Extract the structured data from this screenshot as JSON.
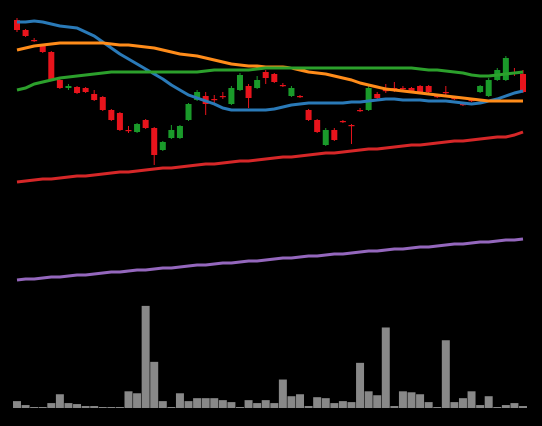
{
  "chart_data": {
    "type": "candlestick",
    "open": [
      270,
      260,
      250,
      244,
      238,
      210,
      202,
      203,
      202,
      196,
      193,
      180,
      177,
      160,
      158,
      170,
      162,
      140,
      152,
      152,
      170,
      190,
      194,
      191,
      194,
      186,
      200,
      204,
      202,
      218,
      216,
      205,
      194,
      194,
      180,
      170,
      145,
      160,
      169,
      165,
      180,
      180,
      196,
      200,
      202,
      202,
      202,
      204,
      204,
      194,
      198,
      192,
      186,
      190,
      198,
      194,
      210,
      210,
      218,
      216
    ],
    "close": [
      260,
      254,
      249,
      238,
      210,
      202,
      204,
      197,
      198,
      190,
      180,
      170,
      160,
      159,
      166,
      162,
      135,
      148,
      160,
      164,
      186,
      198,
      186,
      190,
      193,
      202,
      215,
      192,
      210,
      212,
      208,
      204,
      202,
      193,
      170,
      158,
      160,
      150,
      168,
      164,
      179,
      202,
      192,
      199,
      201,
      201,
      198,
      198,
      198,
      193,
      197,
      191,
      185,
      189,
      204,
      210,
      220,
      232,
      217,
      198
    ],
    "high": [
      272,
      261,
      252,
      245,
      239,
      212,
      206,
      204,
      203,
      200,
      194,
      181,
      178,
      164,
      167,
      171,
      163,
      149,
      165,
      165,
      187,
      200,
      198,
      195,
      198,
      204,
      217,
      206,
      214,
      220,
      217,
      207,
      204,
      195,
      181,
      171,
      162,
      162,
      170,
      166,
      182,
      204,
      198,
      206,
      208,
      204,
      203,
      205,
      205,
      195,
      204,
      194,
      188,
      192,
      205,
      212,
      222,
      234,
      222,
      220
    ],
    "low": [
      258,
      253,
      248,
      237,
      209,
      201,
      200,
      196,
      197,
      189,
      179,
      169,
      159,
      157,
      157,
      161,
      125,
      139,
      151,
      151,
      169,
      189,
      175,
      187,
      191,
      185,
      199,
      182,
      201,
      206,
      207,
      203,
      193,
      192,
      169,
      157,
      144,
      149,
      167,
      146,
      178,
      179,
      191,
      197,
      198,
      198,
      197,
      197,
      197,
      192,
      194,
      190,
      184,
      188,
      197,
      193,
      209,
      209,
      214,
      197
    ],
    "up_color": "#1a9a2a",
    "down_color": "#e8141c",
    "ylim": [
      0,
      280
    ],
    "series": [
      {
        "color": "#2a7ab8",
        "values": [
          268,
          268,
          269,
          268,
          266,
          264,
          263,
          262,
          258,
          254,
          248,
          242,
          236,
          231,
          226,
          221,
          216,
          211,
          205,
          200,
          195,
          192,
          189,
          186,
          182,
          180,
          180,
          180,
          180,
          180,
          181,
          183,
          185,
          186,
          187,
          187,
          187,
          187,
          187,
          188,
          188,
          189,
          190,
          191,
          191,
          190,
          190,
          190,
          189,
          189,
          189,
          188,
          187,
          186,
          187,
          189,
          191,
          194,
          197,
          199
        ]
      },
      {
        "color": "#ff8c1a",
        "values": [
          240,
          242,
          244,
          245,
          246,
          247,
          247,
          247,
          247,
          247,
          247,
          246,
          245,
          245,
          244,
          243,
          242,
          240,
          238,
          236,
          235,
          234,
          232,
          230,
          228,
          226,
          225,
          224,
          224,
          223,
          223,
          223,
          222,
          220,
          218,
          217,
          216,
          214,
          212,
          210,
          207,
          205,
          203,
          201,
          200,
          199,
          198,
          197,
          196,
          195,
          194,
          193,
          192,
          191,
          190,
          189,
          189,
          189,
          189,
          189
        ]
      },
      {
        "color": "#2ca02c",
        "values": [
          200,
          202,
          206,
          208,
          210,
          212,
          213,
          214,
          215,
          216,
          217,
          218,
          218,
          218,
          218,
          218,
          218,
          218,
          218,
          218,
          218,
          218,
          219,
          220,
          220,
          220,
          220,
          220,
          221,
          222,
          222,
          222,
          222,
          222,
          222,
          222,
          222,
          222,
          222,
          222,
          222,
          222,
          222,
          222,
          222,
          222,
          222,
          221,
          220,
          220,
          219,
          218,
          217,
          215,
          214,
          214,
          215,
          216,
          217,
          218
        ]
      },
      {
        "color": "#d62728",
        "values": [
          108,
          109,
          110,
          111,
          111,
          112,
          113,
          114,
          114,
          115,
          116,
          117,
          118,
          118,
          119,
          120,
          121,
          122,
          122,
          123,
          124,
          125,
          126,
          126,
          127,
          128,
          129,
          129,
          130,
          131,
          132,
          133,
          133,
          134,
          135,
          136,
          137,
          137,
          138,
          139,
          140,
          141,
          141,
          142,
          143,
          144,
          145,
          145,
          146,
          147,
          148,
          149,
          149,
          150,
          151,
          152,
          153,
          153,
          155,
          158
        ]
      },
      {
        "color": "#9467bd",
        "values": [
          10,
          11,
          11,
          12,
          13,
          13,
          14,
          15,
          15,
          16,
          17,
          18,
          18,
          19,
          20,
          20,
          21,
          22,
          22,
          23,
          24,
          25,
          25,
          26,
          27,
          27,
          28,
          29,
          29,
          30,
          31,
          32,
          32,
          33,
          34,
          34,
          35,
          36,
          36,
          37,
          38,
          39,
          39,
          40,
          41,
          41,
          42,
          43,
          43,
          44,
          45,
          46,
          46,
          47,
          48,
          48,
          49,
          50,
          50,
          51
        ]
      }
    ],
    "volume": [
      7,
      3,
      1,
      1,
      5,
      14,
      5,
      4,
      2,
      2,
      1,
      1,
      1,
      17,
      15,
      104,
      47,
      7,
      1,
      15,
      7,
      10,
      10,
      10,
      8,
      6,
      1,
      8,
      5,
      8,
      5,
      29,
      12,
      14,
      2,
      11,
      10,
      5,
      7,
      6,
      46,
      17,
      13,
      82,
      2,
      17,
      16,
      14,
      6,
      1,
      69,
      6,
      10,
      17,
      3,
      12,
      1,
      3,
      5,
      2
    ],
    "volume_color": "#888888",
    "volume_ylim": [
      0,
      110
    ]
  }
}
